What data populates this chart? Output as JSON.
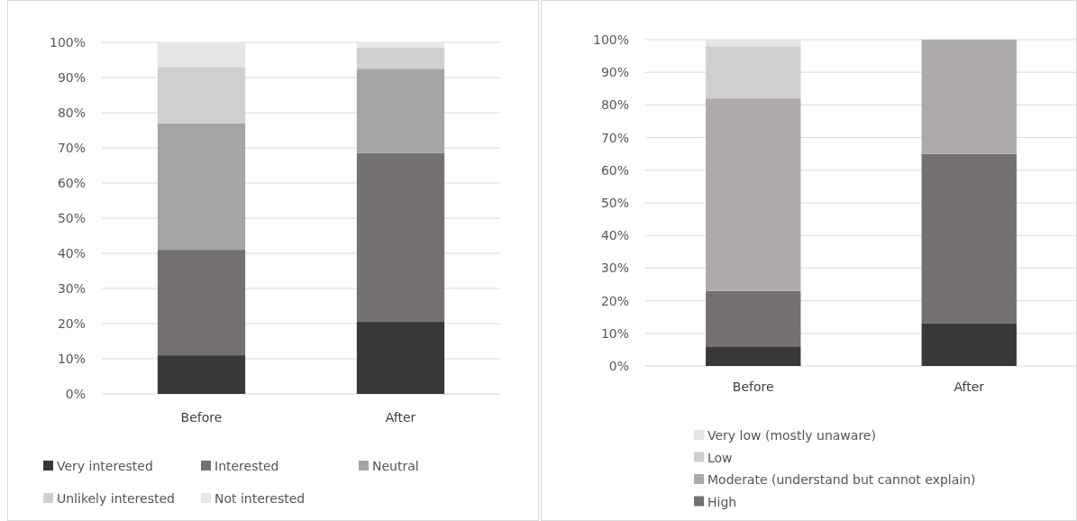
{
  "chart_data": [
    {
      "type": "bar",
      "stacked": true,
      "categories": [
        "Before",
        "After"
      ],
      "ylim": [
        0,
        100
      ],
      "yticks": [
        {
          "value": 0,
          "label": "0%"
        },
        {
          "value": 10,
          "label": "10%"
        },
        {
          "value": 20,
          "label": "20%"
        },
        {
          "value": 30,
          "label": "30%"
        },
        {
          "value": 40,
          "label": "40%"
        },
        {
          "value": 50,
          "label": "50%"
        },
        {
          "value": 60,
          "label": "60%"
        },
        {
          "value": 70,
          "label": "70%"
        },
        {
          "value": 80,
          "label": "80%"
        },
        {
          "value": 90,
          "label": "90%"
        },
        {
          "value": 100,
          "label": "100%"
        }
      ],
      "grid": "y",
      "legend": "bottom",
      "series": [
        {
          "name": "Very interested",
          "color": "#3a3836",
          "values": [
            11,
            20.5
          ]
        },
        {
          "name": "Interested",
          "color": "#757170",
          "values": [
            30,
            48
          ]
        },
        {
          "name": "Neutral",
          "color": "#a5a5a5",
          "values": [
            36,
            24
          ]
        },
        {
          "name": "Unlikely interested",
          "color": "#d0cece",
          "values": [
            16,
            6
          ]
        },
        {
          "name": "Not interested",
          "color": "#e7e6e6",
          "values": [
            7,
            1.5
          ]
        }
      ]
    },
    {
      "type": "bar",
      "stacked": true,
      "categories": [
        "Before",
        "After"
      ],
      "ylim": [
        0,
        100
      ],
      "yticks": [
        {
          "value": 0,
          "label": "0%"
        },
        {
          "value": 10,
          "label": "10%"
        },
        {
          "value": 20,
          "label": "20%"
        },
        {
          "value": 30,
          "label": "30%"
        },
        {
          "value": 40,
          "label": "40%"
        },
        {
          "value": 50,
          "label": "50%"
        },
        {
          "value": 60,
          "label": "60%"
        },
        {
          "value": 70,
          "label": "70%"
        },
        {
          "value": 80,
          "label": "80%"
        },
        {
          "value": 90,
          "label": "90%"
        },
        {
          "value": 100,
          "label": "100%"
        }
      ],
      "grid": "y",
      "legend": "bottom left",
      "series": [
        {
          "color": "#3a3836",
          "values": [
            6,
            13
          ]
        },
        {
          "name": "High",
          "color": "#757170",
          "values": [
            17,
            52
          ]
        },
        {
          "name": "Moderate (understand but cannot explain)",
          "color": "#aeaaaa",
          "values": [
            59,
            35
          ]
        },
        {
          "name": "Low",
          "color": "#d0cece",
          "values": [
            16,
            0
          ]
        },
        {
          "name": "Very low (mostly unaware)",
          "color": "#e7e6e6",
          "values": [
            2,
            0
          ]
        }
      ]
    }
  ]
}
